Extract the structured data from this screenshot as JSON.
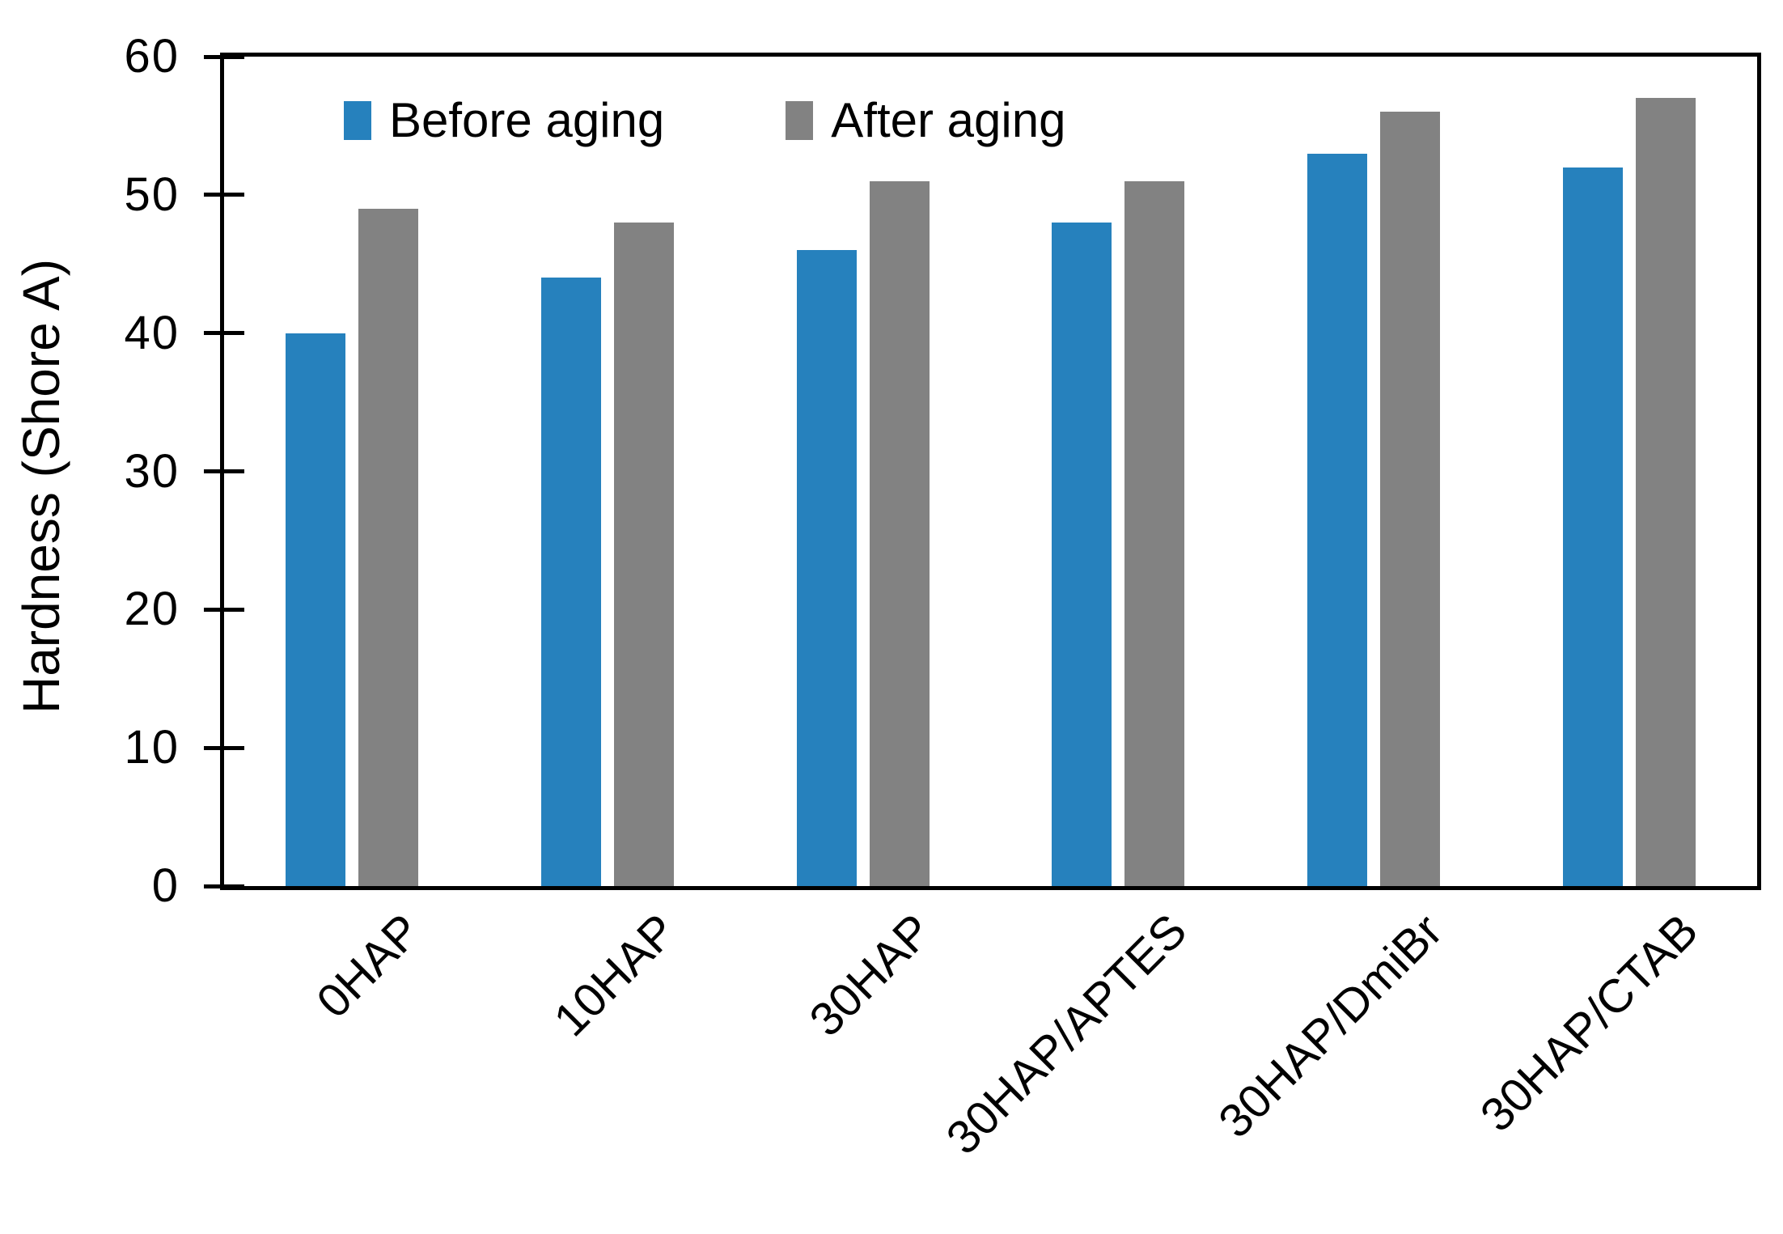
{
  "chart_data": {
    "type": "bar",
    "title": "",
    "ylabel": "Hardness (Shore A)",
    "xlabel": "",
    "ylim": [
      0,
      60
    ],
    "yticks": [
      0,
      10,
      20,
      30,
      40,
      50,
      60
    ],
    "grid": "off",
    "legend_position": "inside-top-left",
    "categories": [
      "0HAP",
      "10HAP",
      "30HAP",
      "30HAP/APTES",
      "30HAP/DmiBr",
      "30HAP/CTAB"
    ],
    "series": [
      {
        "name": "Before aging",
        "color": "#2681bd",
        "values": [
          40,
          44,
          46,
          48,
          53,
          52
        ]
      },
      {
        "name": "After aging",
        "color": "#828282",
        "values": [
          49,
          48,
          51,
          51,
          56,
          57
        ]
      }
    ],
    "axis_color": "#000000",
    "background_color": "#ffffff"
  }
}
